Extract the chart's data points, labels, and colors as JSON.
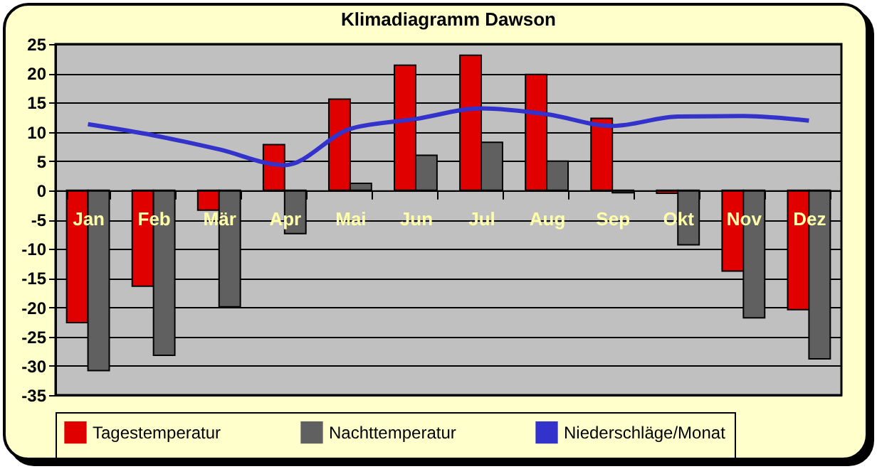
{
  "chart_data": {
    "type": "bar",
    "title": "Klimadiagramm Dawson",
    "categories": [
      "Jan",
      "Feb",
      "Mär",
      "Apr",
      "Mai",
      "Jun",
      "Jul",
      "Aug",
      "Sep",
      "Okt",
      "Nov",
      "Dez"
    ],
    "series": [
      {
        "name": "Tagestemperatur",
        "color": "#e00000",
        "values": [
          -22.6,
          -16.4,
          -3.4,
          7.8,
          15.6,
          21.4,
          23.1,
          19.8,
          12.3,
          -0.5,
          -13.8,
          -20.4
        ]
      },
      {
        "name": "Nachttemperatur",
        "color": "#606060",
        "values": [
          -30.8,
          -28.2,
          -19.9,
          -7.4,
          1.2,
          6.0,
          8.2,
          5.0,
          -0.4,
          -9.3,
          -21.8,
          -28.8
        ]
      },
      {
        "name": "Niederschläge/Monat",
        "type": "line",
        "color": "#3333cc",
        "values": [
          11.3,
          9.4,
          7.0,
          4.3,
          10.5,
          12.2,
          14.0,
          13.0,
          11.0,
          12.6,
          12.7,
          11.9
        ]
      }
    ],
    "ylim": [
      -35,
      25
    ],
    "yticks": [
      -35,
      -30,
      -25,
      -20,
      -15,
      -10,
      -5,
      0,
      5,
      10,
      15,
      20,
      25
    ],
    "grid": "y",
    "legend": "bottom",
    "marker": "none",
    "line_style": "solid"
  }
}
